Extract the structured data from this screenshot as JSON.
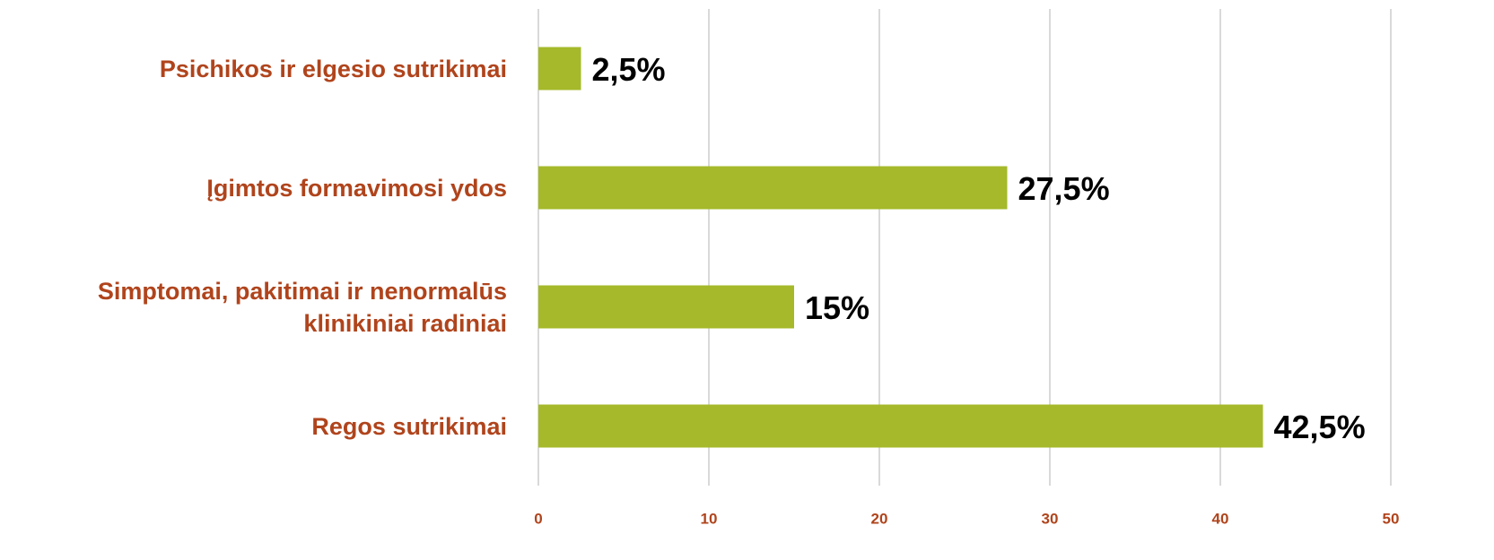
{
  "chart_data": {
    "type": "bar",
    "orientation": "horizontal",
    "categories": [
      "Psichikos ir elgesio sutrikimai",
      "Įgimtos formavimosi ydos",
      "Simptomai, pakitimai ir nenormalūs klinikiniai radiniai",
      "Regos sutrikimai"
    ],
    "values": [
      2.5,
      27.5,
      15,
      42.5
    ],
    "value_labels": [
      "2,5%",
      "27,5%",
      "15%",
      "42,5%"
    ],
    "color": "#a5b92a",
    "xlim": [
      0,
      50
    ],
    "xticks": [
      0,
      10,
      20,
      30,
      40,
      50
    ],
    "grid": true
  }
}
